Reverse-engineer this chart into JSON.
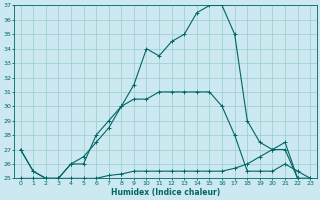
{
  "xlabel": "Humidex (Indice chaleur)",
  "bg_color": "#cce8f0",
  "grid_color": "#99cccc",
  "line_color": "#006666",
  "xlim": [
    -0.5,
    23.5
  ],
  "ylim": [
    25,
    37
  ],
  "yticks": [
    25,
    26,
    27,
    28,
    29,
    30,
    31,
    32,
    33,
    34,
    35,
    36,
    37
  ],
  "xticks": [
    0,
    1,
    2,
    3,
    4,
    5,
    6,
    7,
    8,
    9,
    10,
    11,
    12,
    13,
    14,
    15,
    16,
    17,
    18,
    19,
    20,
    21,
    22,
    23
  ],
  "curve1_x": [
    0,
    1,
    2,
    3,
    4,
    5,
    6,
    7,
    8,
    9,
    10,
    11,
    12,
    13,
    14,
    15,
    16,
    17,
    18,
    19,
    20,
    21,
    22,
    23
  ],
  "curve1_y": [
    27.0,
    25.5,
    25.0,
    25.0,
    26.0,
    26.0,
    28.0,
    29.0,
    30.0,
    31.5,
    34.0,
    33.5,
    34.5,
    35.0,
    36.5,
    37.0,
    37.0,
    35.0,
    29.0,
    27.5,
    27.0,
    27.0,
    25.0,
    25.0
  ],
  "curve2_x": [
    0,
    1,
    2,
    3,
    4,
    5,
    6,
    7,
    8,
    9,
    10,
    11,
    12,
    13,
    14,
    15,
    16,
    17,
    18,
    19,
    20,
    21,
    22,
    23
  ],
  "curve2_y": [
    27.0,
    25.5,
    25.0,
    25.0,
    26.0,
    26.5,
    27.5,
    28.5,
    30.0,
    30.5,
    30.5,
    31.0,
    31.0,
    31.0,
    31.0,
    31.0,
    30.0,
    28.0,
    25.5,
    25.5,
    25.5,
    26.0,
    25.5,
    25.0
  ],
  "curve3_x": [
    0,
    1,
    2,
    3,
    4,
    5,
    6,
    7,
    8,
    9,
    10,
    11,
    12,
    13,
    14,
    15,
    16,
    17,
    18,
    19,
    20,
    21,
    22,
    23
  ],
  "curve3_y": [
    25.0,
    25.0,
    25.0,
    25.0,
    25.0,
    25.0,
    25.0,
    25.2,
    25.3,
    25.5,
    25.5,
    25.5,
    25.5,
    25.5,
    25.5,
    25.5,
    25.5,
    25.7,
    26.0,
    26.5,
    27.0,
    27.5,
    25.0,
    25.0
  ]
}
